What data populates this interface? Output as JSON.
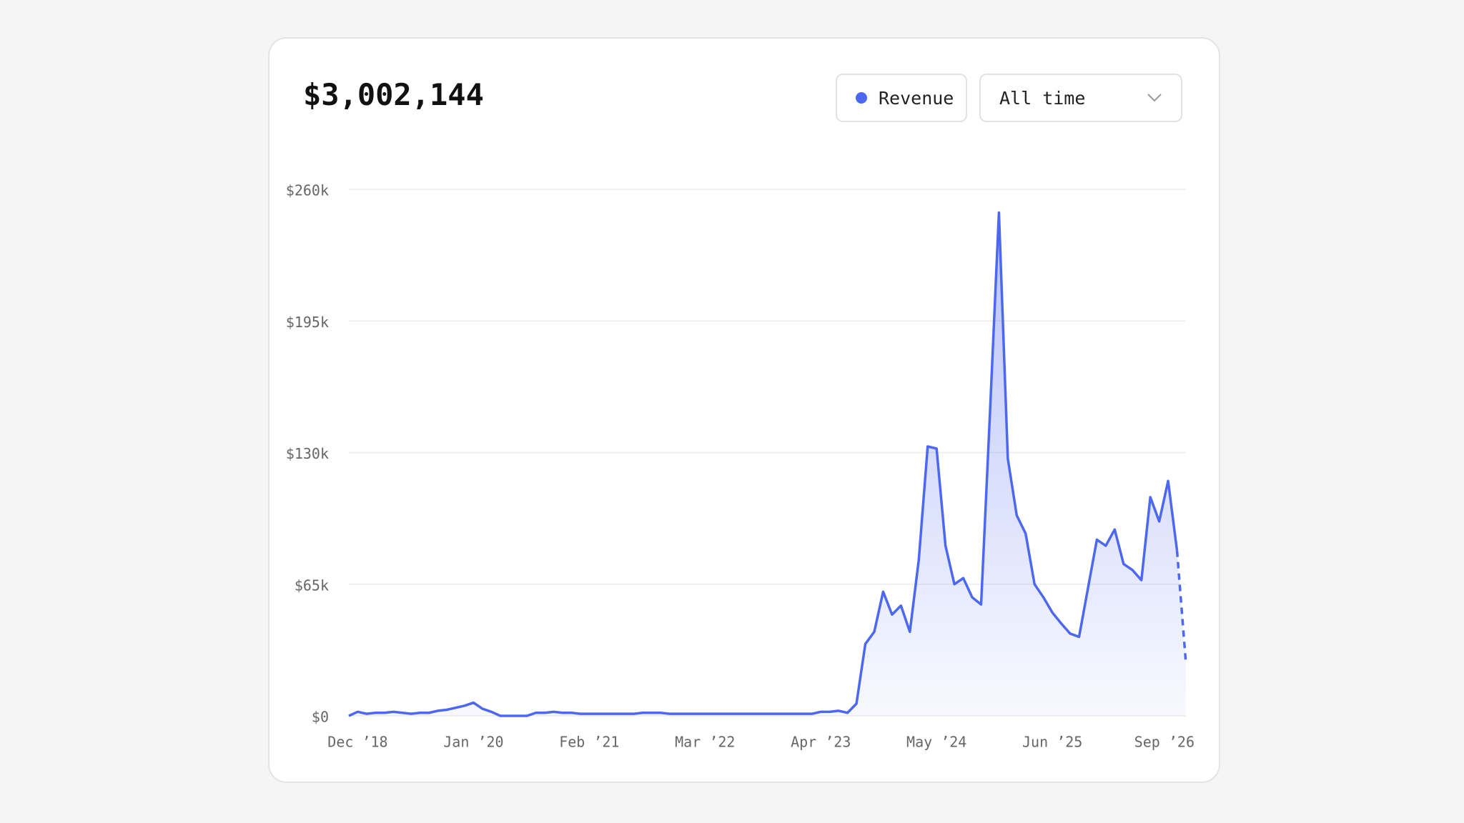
{
  "header": {
    "total": "$3,002,144"
  },
  "controls": {
    "legend_button": "Revenue",
    "range_select": "All time"
  },
  "chart_data": {
    "type": "line",
    "categories": [
      null,
      "Dec ’18",
      null,
      null,
      null,
      null,
      null,
      null,
      null,
      null,
      null,
      null,
      null,
      null,
      "Jan ’20",
      null,
      null,
      null,
      null,
      null,
      null,
      null,
      null,
      null,
      null,
      null,
      null,
      "Feb ’21",
      null,
      null,
      null,
      null,
      null,
      null,
      null,
      null,
      null,
      null,
      null,
      null,
      "Mar ’22",
      null,
      null,
      null,
      null,
      null,
      null,
      null,
      null,
      null,
      null,
      null,
      null,
      "Apr ’23",
      null,
      null,
      null,
      null,
      null,
      null,
      null,
      null,
      null,
      null,
      null,
      null,
      "May ’24",
      null,
      null,
      null,
      null,
      null,
      null,
      null,
      null,
      null,
      null,
      null,
      null,
      "Jun ’25",
      null,
      null,
      null,
      null,
      null,
      null,
      null,
      null,
      null,
      null,
      null,
      null,
      null,
      null,
      "Sep ’26"
    ],
    "series": [
      {
        "name": "Revenue",
        "color": "#4d68f0",
        "values": [
          0,
          2000,
          1000,
          1500,
          1500,
          2000,
          1500,
          1000,
          1500,
          1500,
          2500,
          3000,
          4000,
          5000,
          6500,
          3500,
          2000,
          0,
          0,
          0,
          0,
          1500,
          1500,
          2000,
          1500,
          1500,
          1000,
          1000,
          1000,
          1000,
          1000,
          1000,
          1000,
          1500,
          1500,
          1500,
          1000,
          1000,
          1000,
          1000,
          1000,
          1000,
          1000,
          1000,
          1000,
          1000,
          1000,
          1000,
          1000,
          1000,
          1000,
          1000,
          1000,
          2000,
          2000,
          2500,
          1500,
          6000,
          35500,
          41500,
          61300,
          50000,
          54400,
          41500,
          77000,
          133000,
          132000,
          84000,
          65000,
          68000,
          58500,
          55000,
          150000,
          248500,
          127000,
          99000,
          90000,
          65000,
          58500,
          51000,
          45600,
          40600,
          39000,
          63000,
          87000,
          84000,
          92000,
          75000,
          72000,
          67000,
          108000,
          96000,
          116000,
          81600,
          26000
        ]
      }
    ],
    "dashed_from_index": 93,
    "ylim": [
      0,
      260000
    ],
    "yticks": [
      {
        "value": 0,
        "label": "$0"
      },
      {
        "value": 65000,
        "label": "$65k"
      },
      {
        "value": 130000,
        "label": "$130k"
      },
      {
        "value": 195000,
        "label": "$195k"
      },
      {
        "value": 260000,
        "label": "$260k"
      }
    ],
    "grid": true
  }
}
